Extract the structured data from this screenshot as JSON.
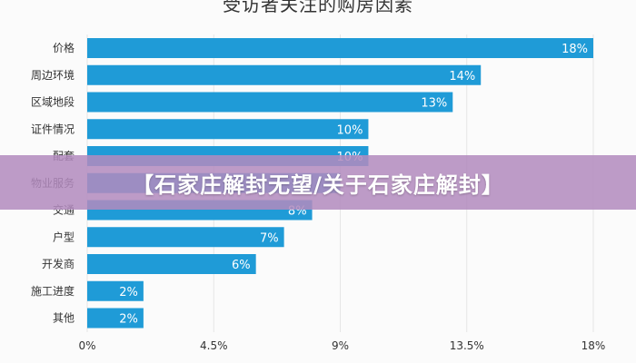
{
  "chart_data": {
    "type": "bar",
    "orientation": "horizontal",
    "title": "受访者关注的购房因素",
    "categories": [
      "价格",
      "周边环境",
      "区域地段",
      "证件情况",
      "配套",
      "物业服务",
      "交通",
      "户型",
      "开发商",
      "施工进度",
      "其他"
    ],
    "values": [
      18,
      14,
      13,
      10,
      10,
      9,
      8,
      7,
      6,
      2,
      2
    ],
    "data_labels": [
      "18%",
      "14%",
      "13%",
      "10%",
      "10%",
      "",
      "8%",
      "7%",
      "6%",
      "2%",
      "2%"
    ],
    "x_ticks": [
      "0%",
      "4.5%",
      "9%",
      "13.5%",
      "18%"
    ],
    "x_tick_values": [
      0,
      4.5,
      9,
      13.5,
      18
    ],
    "xlim": [
      0,
      18
    ],
    "bar_color": "#1f9bd7",
    "grid": true
  },
  "banner": {
    "text": "【石家庄解封无望/关于石家庄解封】"
  },
  "colors": {
    "bar": "#1f9bd7",
    "label": "#333333",
    "banner": "#b28abe"
  }
}
